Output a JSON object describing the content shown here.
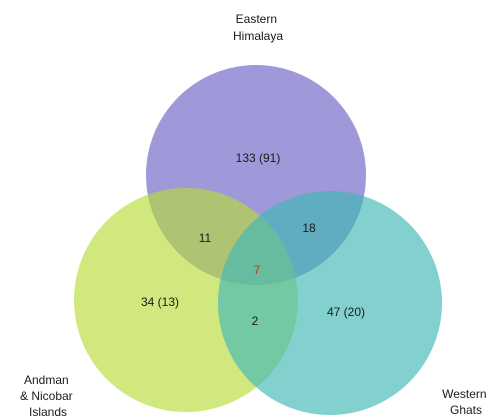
{
  "sets": {
    "eastern_himalaya": {
      "label_lines": [
        "Eastern",
        "Himalaya"
      ],
      "color": "#6b63c4"
    },
    "andaman_nicobar": {
      "label_lines": [
        "Andman",
        "& Nicobar",
        "Islands"
      ],
      "color": "#b9dc3a"
    },
    "western_ghats": {
      "label_lines": [
        "Western",
        "Ghats"
      ],
      "color": "#3fb8b5"
    }
  },
  "regions": {
    "eastern_himalaya_only": "133 (91)",
    "andaman_nicobar_only": "34 (13)",
    "western_ghats_only": "47 (20)",
    "eh_an": "11",
    "eh_wg": "18",
    "an_wg": "2",
    "all_three": "7"
  },
  "colors": {
    "all_three_text": "#e0241b"
  }
}
